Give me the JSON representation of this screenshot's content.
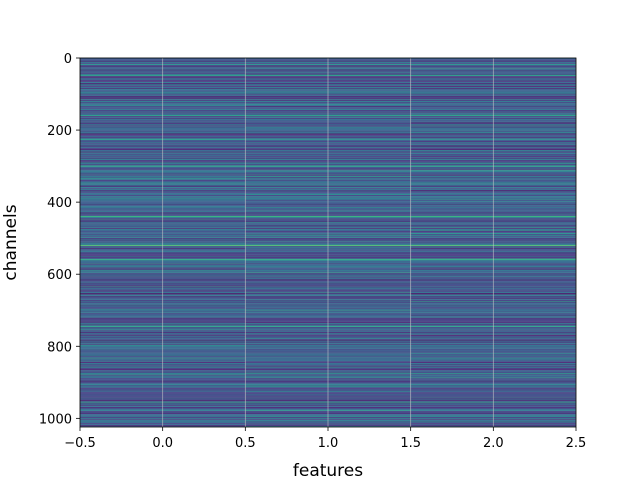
{
  "chart_data": {
    "type": "heatmap",
    "title": "",
    "xlabel": "features",
    "ylabel": "channels",
    "xlim": [
      -0.5,
      2.5
    ],
    "ylim": [
      1024,
      0
    ],
    "y_inverted": true,
    "columns": [
      0,
      1,
      2
    ],
    "rows": 1024,
    "grid": true,
    "colormap": "viridis",
    "x_ticks": [
      -0.5,
      0.0,
      0.5,
      1.0,
      1.5,
      2.0,
      2.5
    ],
    "x_tick_labels": [
      "−0.5",
      "0.0",
      "0.5",
      "1.0",
      "1.5",
      "2.0",
      "2.5"
    ],
    "y_ticks": [
      0,
      200,
      400,
      600,
      800,
      1000
    ],
    "y_tick_labels": [
      "0",
      "200",
      "400",
      "600",
      "800",
      "1000"
    ],
    "highlight_rows": [
      {
        "channel": 18,
        "value": 0.55
      },
      {
        "channel": 48,
        "value": 0.62
      },
      {
        "channel": 160,
        "value": 0.6
      },
      {
        "channel": 225,
        "value": 0.55
      },
      {
        "channel": 300,
        "value": 0.62
      },
      {
        "channel": 440,
        "value": 0.7
      },
      {
        "channel": 520,
        "value": 0.78
      },
      {
        "channel": 560,
        "value": 0.66
      },
      {
        "channel": 745,
        "value": 0.62
      },
      {
        "channel": 955,
        "value": 0.6
      }
    ],
    "background_range": [
      0.05,
      0.45
    ]
  },
  "colors": {
    "viridis_stops": [
      "#440154",
      "#482878",
      "#3e4989",
      "#31688e",
      "#26828e",
      "#1f9e89",
      "#35b779",
      "#6ece58",
      "#b5de2b",
      "#fde725"
    ],
    "grid": "#c8c8c8",
    "axis": "#000000",
    "background": "#ffffff"
  }
}
